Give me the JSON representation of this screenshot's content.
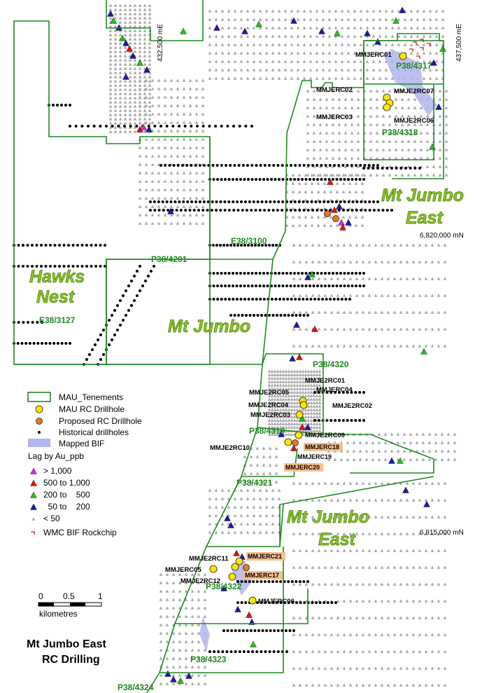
{
  "map": {
    "areas": {
      "hawks_nest_1": "Hawks",
      "hawks_nest_2": "Nest",
      "mt_jumbo": "Mt Jumbo",
      "mt_jumbo_east_north_1": "Mt Jumbo",
      "mt_jumbo_east_north_2": "East",
      "mt_jumbo_east_south_1": "Mt Jumbo",
      "mt_jumbo_east_south_2": "East"
    },
    "tenements": {
      "e38_3100": "E38/3100",
      "p38_4201": "P38/4201",
      "e38_3127": "E38/3127",
      "p38_4317": "P38/4317",
      "p38_4318": "P38/4318",
      "p38_4320": "P38/4320",
      "p38_4319": "P38/4319",
      "p38_4321": "P38/4321",
      "p38_4322": "P38/4322",
      "p38_4323": "P38/4323",
      "p38_4324": "P38/4324"
    },
    "coords": {
      "e432500": "432,500 mE",
      "e437500": "437,500 mE",
      "n6820000": "6,820,000 mN",
      "n6815000": "6,815,000 mN"
    },
    "drillholes": {
      "mmjerc01": "MMJERC01",
      "mmjerc02": "MMJERC02",
      "mmje2rc07": "MMJE2RC07",
      "mmjerc03": "MMJERC03",
      "mmje2rc06": "MMJE2RC06",
      "mmje2rc01": "MMJE2RC01",
      "mmje2rc05": "MMJE2RC05",
      "mmjerc04": "MMJERC04",
      "mmje2rc04": "MMJE2RC04",
      "mmje2rc02": "MMJE2RC02",
      "mmje2rc03": "MMJE2RC03",
      "mmje2rc09": "MMJE2RC09",
      "mmje2rc10": "MMJE2RC10",
      "mmje2rc11": "MMJE2RC11",
      "mmjerc05": "MMJERC05",
      "mmje2rc12": "MMJE2RC12",
      "mmjerc06": "MMJERC06"
    },
    "proposed": {
      "mmjerc18": "MMJERC18",
      "mmjerc19": "MMJERC19",
      "mmjerc20": "MMJERC20",
      "mmjerc21": "MMJERC21",
      "mmjerc17": "MMJERC17"
    }
  },
  "legend": {
    "tenements": "MAU_Tenements",
    "mau_rc": "MAU RC Drillhole",
    "proposed_rc": "Proposed RC Drillhole",
    "historical": "Historical drillholes",
    "bif": "Mapped BIF",
    "lag_title": "Lag by Au_ppb",
    "lag_gt1000": "> 1,000",
    "lag_500_1000": "500 to 1,000",
    "lag_200_500": "200 to    500",
    "lag_50_200": "  50 to    200",
    "lag_lt50": "< 50",
    "wmc": "WMC BIF Rockchip"
  },
  "scale": {
    "t0": "0",
    "t05": "0.5",
    "t1": "1",
    "unit": "kilometres"
  },
  "title": {
    "line1": "Mt Jumbo East",
    "line2": "RC Drilling"
  },
  "colors": {
    "tenement": "#1f8a1f",
    "mau_rc": "#ffe600",
    "proposed_rc": "#e87722",
    "historical": "#000000",
    "bif": "#b3b6ee",
    "lag_gt1000": "#e020e0",
    "lag_500_1000": "#e01010",
    "lag_200_500": "#22c01a",
    "lag_50_200": "#1a1aa8",
    "lag_lt50": "#a9a9a9",
    "wmc": "#e01010",
    "proposed_label_bg": "#f5c090"
  }
}
